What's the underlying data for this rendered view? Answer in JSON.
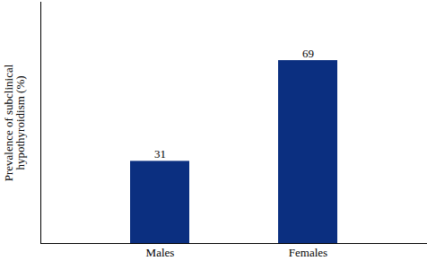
{
  "chart_data": {
    "type": "bar",
    "ylabel": "Prevalence of subclinical hypothyroidism (%)",
    "categories": [
      "Males",
      "Females"
    ],
    "values": [
      31,
      69
    ],
    "color": "#0b2f80",
    "ylim": [
      0,
      91
    ],
    "yticks": [],
    "grid": false,
    "data_labels": true,
    "tick_labels": "x"
  }
}
